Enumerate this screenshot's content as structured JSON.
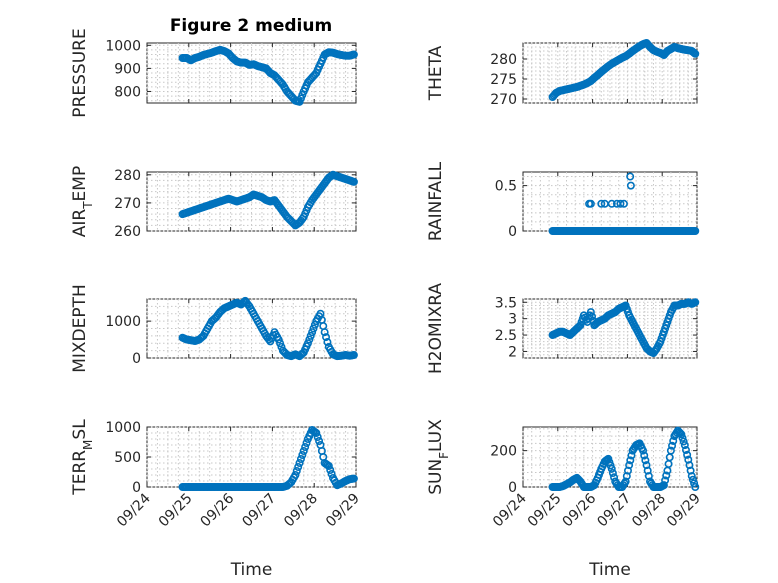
{
  "figure_title": "Figure 2 medium",
  "colors": {
    "marker": "#0072BD",
    "axis": "#262626",
    "grid": "#c8c8c8"
  },
  "chart_data": [
    {
      "type": "scatter",
      "title": "Figure 2 medium",
      "ylabel": "PRESSURE",
      "xlabel": "",
      "xlim": [
        0,
        5
      ],
      "ylim": [
        750,
        1010
      ],
      "yticks": [
        800,
        900,
        1000
      ],
      "yticklabels": [
        "800",
        "900",
        "1000"
      ],
      "xticklabels": [
        "09/24",
        "09/25",
        "09/26",
        "09/27",
        "09/28",
        "09/29"
      ],
      "show_xticklabels": false,
      "grid": true,
      "series": [
        {
          "x": [
            0.85,
            0.95,
            1.05,
            1.15,
            1.25,
            1.35,
            1.45,
            1.55,
            1.65,
            1.75,
            1.85,
            1.95,
            2.05,
            2.15,
            2.25,
            2.35,
            2.45,
            2.55,
            2.65,
            2.75,
            2.85,
            2.95,
            3.05,
            3.15,
            3.25,
            3.35,
            3.45,
            3.55,
            3.65,
            3.75,
            3.85,
            3.95,
            4.05,
            4.15,
            4.25,
            4.35,
            4.45,
            4.55,
            4.65,
            4.75,
            4.85,
            4.95
          ],
          "y": [
            945,
            945,
            935,
            945,
            950,
            958,
            963,
            968,
            975,
            980,
            975,
            965,
            945,
            930,
            925,
            925,
            915,
            918,
            910,
            905,
            900,
            880,
            870,
            850,
            830,
            800,
            780,
            760,
            755,
            800,
            840,
            860,
            880,
            920,
            960,
            970,
            968,
            962,
            958,
            955,
            955,
            960
          ]
        }
      ]
    },
    {
      "type": "scatter",
      "ylabel": "THETA",
      "xlabel": "",
      "xlim": [
        0,
        5
      ],
      "ylim": [
        269,
        284
      ],
      "yticks": [
        270,
        275,
        280
      ],
      "yticklabels": [
        "270",
        "275",
        "280"
      ],
      "xticklabels": [
        "09/24",
        "09/25",
        "09/26",
        "09/27",
        "09/28",
        "09/29"
      ],
      "show_xticklabels": false,
      "grid": true,
      "series": [
        {
          "x": [
            0.85,
            0.95,
            1.05,
            1.15,
            1.25,
            1.35,
            1.45,
            1.55,
            1.65,
            1.75,
            1.85,
            1.95,
            2.05,
            2.15,
            2.25,
            2.35,
            2.45,
            2.55,
            2.65,
            2.75,
            2.85,
            2.95,
            3.05,
            3.15,
            3.25,
            3.35,
            3.45,
            3.55,
            3.65,
            3.75,
            3.85,
            3.95,
            4.05,
            4.15,
            4.25,
            4.35,
            4.45,
            4.55,
            4.65,
            4.75,
            4.85,
            4.95
          ],
          "y": [
            270.5,
            271.5,
            272,
            272.2,
            272.4,
            272.6,
            272.8,
            273,
            273.3,
            273.6,
            274,
            274.5,
            275.3,
            276,
            276.8,
            277.5,
            278.2,
            278.8,
            279.3,
            279.8,
            280.3,
            280.7,
            281.3,
            282,
            282.6,
            283.2,
            283.7,
            284,
            283,
            282.2,
            281.8,
            281.5,
            281,
            282,
            282.5,
            283,
            282.7,
            282.5,
            282.3,
            282.2,
            282.0,
            281.3
          ]
        }
      ]
    },
    {
      "type": "scatter",
      "ylabel": "AIR_TEMP",
      "xlabel": "",
      "xlim": [
        0,
        5
      ],
      "ylim": [
        260,
        281
      ],
      "yticks": [
        260,
        270,
        280
      ],
      "yticklabels": [
        "260",
        "270",
        "280"
      ],
      "xticklabels": [
        "09/24",
        "09/25",
        "09/26",
        "09/27",
        "09/28",
        "09/29"
      ],
      "show_xticklabels": false,
      "grid": true,
      "series": [
        {
          "x": [
            0.85,
            0.95,
            1.05,
            1.15,
            1.25,
            1.35,
            1.45,
            1.55,
            1.65,
            1.75,
            1.85,
            1.95,
            2.05,
            2.15,
            2.25,
            2.35,
            2.45,
            2.55,
            2.65,
            2.75,
            2.85,
            2.95,
            3.05,
            3.15,
            3.25,
            3.35,
            3.45,
            3.55,
            3.65,
            3.75,
            3.85,
            3.95,
            4.05,
            4.15,
            4.25,
            4.35,
            4.45,
            4.55,
            4.65,
            4.75,
            4.85,
            4.95
          ],
          "y": [
            266,
            266.5,
            267,
            267.5,
            268,
            268.5,
            269,
            269.5,
            270,
            270.5,
            271,
            271.5,
            271,
            270.5,
            271,
            271.5,
            272,
            273,
            272.5,
            272,
            271,
            270.5,
            271,
            269,
            267,
            265,
            263.5,
            262,
            263,
            265,
            268.5,
            271,
            273,
            275,
            277,
            279,
            280,
            279.5,
            279,
            278.5,
            278,
            277.5
          ]
        }
      ]
    },
    {
      "type": "scatter",
      "ylabel": "RAINFALL",
      "xlabel": "",
      "xlim": [
        0,
        5
      ],
      "ylim": [
        0,
        0.65
      ],
      "yticks": [
        0,
        0.5
      ],
      "yticklabels": [
        "0",
        "0.5"
      ],
      "xticklabels": [
        "09/24",
        "09/25",
        "09/26",
        "09/27",
        "09/28",
        "09/29"
      ],
      "show_xticklabels": false,
      "grid": true,
      "series": [
        {
          "x": [
            0.85,
            0.95,
            1.05,
            1.15,
            1.25,
            1.35,
            1.45,
            1.55,
            1.65,
            1.75,
            1.85,
            1.95,
            2.05,
            2.15,
            2.25,
            2.35,
            2.45,
            2.55,
            2.65,
            2.75,
            2.85,
            2.95,
            3.05,
            3.15,
            3.25,
            3.35,
            3.45,
            3.55,
            3.65,
            3.75,
            3.85,
            3.95,
            4.05,
            4.15,
            4.25,
            4.35,
            4.45,
            4.55,
            4.65,
            4.75,
            4.85,
            4.95,
            1.9,
            1.95,
            2.25,
            2.35,
            2.55,
            2.7,
            2.8,
            2.9,
            3.08,
            3.1
          ],
          "y": [
            0,
            0,
            0,
            0,
            0,
            0,
            0,
            0,
            0,
            0,
            0,
            0,
            0,
            0,
            0,
            0,
            0,
            0,
            0,
            0,
            0,
            0,
            0,
            0,
            0,
            0,
            0,
            0,
            0,
            0,
            0,
            0,
            0,
            0,
            0,
            0,
            0,
            0,
            0,
            0,
            0,
            0,
            0.3,
            0.3,
            0.3,
            0.3,
            0.3,
            0.3,
            0.3,
            0.3,
            0.6,
            0.5
          ]
        }
      ]
    },
    {
      "type": "scatter",
      "ylabel": "MIXDEPTH",
      "xlabel": "",
      "xlim": [
        0,
        5
      ],
      "ylim": [
        0,
        1600
      ],
      "yticks": [
        0,
        1000
      ],
      "yticklabels": [
        "0",
        "1000"
      ],
      "xticklabels": [
        "09/24",
        "09/25",
        "09/26",
        "09/27",
        "09/28",
        "09/29"
      ],
      "show_xticklabels": false,
      "grid": true,
      "series": [
        {
          "x": [
            0.85,
            0.95,
            1.05,
            1.15,
            1.25,
            1.35,
            1.45,
            1.55,
            1.65,
            1.75,
            1.85,
            1.95,
            2.05,
            2.15,
            2.25,
            2.35,
            2.45,
            2.55,
            2.65,
            2.75,
            2.85,
            2.95,
            3.05,
            3.15,
            3.25,
            3.35,
            3.45,
            3.55,
            3.65,
            3.75,
            3.85,
            3.95,
            4.05,
            4.15,
            4.25,
            4.35,
            4.45,
            4.55,
            4.65,
            4.75,
            4.85,
            4.95
          ],
          "y": [
            550,
            500,
            480,
            460,
            500,
            600,
            800,
            1000,
            1100,
            1250,
            1350,
            1400,
            1450,
            1500,
            1450,
            1550,
            1400,
            1200,
            1000,
            800,
            600,
            450,
            700,
            500,
            200,
            80,
            50,
            100,
            50,
            150,
            400,
            700,
            1000,
            1200,
            700,
            300,
            100,
            50,
            60,
            80,
            60,
            80
          ]
        }
      ]
    },
    {
      "type": "scatter",
      "ylabel": "H2OMIXRA",
      "xlabel": "",
      "xlim": [
        0,
        5
      ],
      "ylim": [
        1.8,
        3.6
      ],
      "yticks": [
        2,
        2.5,
        3,
        3.5
      ],
      "yticklabels": [
        "2",
        "2.5",
        "3",
        "3.5"
      ],
      "xticklabels": [
        "09/24",
        "09/25",
        "09/26",
        "09/27",
        "09/28",
        "09/29"
      ],
      "show_xticklabels": false,
      "grid": true,
      "series": [
        {
          "x": [
            0.85,
            0.95,
            1.05,
            1.15,
            1.25,
            1.35,
            1.45,
            1.55,
            1.65,
            1.75,
            1.85,
            1.95,
            2.05,
            2.15,
            2.25,
            2.35,
            2.45,
            2.55,
            2.65,
            2.75,
            2.85,
            2.95,
            3.05,
            3.15,
            3.25,
            3.35,
            3.45,
            3.55,
            3.65,
            3.75,
            3.85,
            3.95,
            4.05,
            4.15,
            4.25,
            4.35,
            4.45,
            4.55,
            4.65,
            4.75,
            4.85,
            4.95
          ],
          "y": [
            2.5,
            2.55,
            2.6,
            2.6,
            2.55,
            2.5,
            2.6,
            2.7,
            2.8,
            3.1,
            2.9,
            3.2,
            2.8,
            2.9,
            2.95,
            3.0,
            3.1,
            3.15,
            3.2,
            3.3,
            3.35,
            3.4,
            3.1,
            2.9,
            2.7,
            2.5,
            2.3,
            2.1,
            2.0,
            1.95,
            2.1,
            2.3,
            2.6,
            2.9,
            3.2,
            3.4,
            3.4,
            3.45,
            3.45,
            3.5,
            3.45,
            3.5
          ]
        }
      ]
    },
    {
      "type": "scatter",
      "ylabel": "TERR_MSL",
      "xlabel": "Time",
      "xlim": [
        0,
        5
      ],
      "ylim": [
        0,
        1000
      ],
      "yticks": [
        0,
        500,
        1000
      ],
      "yticklabels": [
        "0",
        "500",
        "1000"
      ],
      "xticklabels": [
        "09/24",
        "09/25",
        "09/26",
        "09/27",
        "09/28",
        "09/29"
      ],
      "show_xticklabels": true,
      "grid": true,
      "series": [
        {
          "x": [
            0.85,
            0.95,
            1.05,
            1.15,
            1.25,
            1.35,
            1.45,
            1.55,
            1.65,
            1.75,
            1.85,
            1.95,
            2.05,
            2.15,
            2.25,
            2.35,
            2.45,
            2.55,
            2.65,
            2.75,
            2.85,
            2.95,
            3.05,
            3.15,
            3.25,
            3.35,
            3.45,
            3.55,
            3.65,
            3.75,
            3.85,
            3.95,
            4.05,
            4.15,
            4.25,
            4.35,
            4.45,
            4.55,
            4.65,
            4.75,
            4.85,
            4.95
          ],
          "y": [
            0,
            0,
            0,
            0,
            0,
            0,
            0,
            0,
            0,
            0,
            0,
            0,
            0,
            0,
            0,
            0,
            0,
            0,
            0,
            0,
            0,
            0,
            0,
            0,
            0,
            20,
            80,
            200,
            400,
            600,
            800,
            950,
            900,
            700,
            400,
            350,
            150,
            30,
            60,
            100,
            130,
            140
          ]
        }
      ]
    },
    {
      "type": "scatter",
      "ylabel": "SUN_FLUX",
      "xlabel": "Time",
      "xlim": [
        0,
        5
      ],
      "ylim": [
        0,
        330
      ],
      "yticks": [
        0,
        200
      ],
      "yticklabels": [
        "0",
        "200"
      ],
      "xticklabels": [
        "09/24",
        "09/25",
        "09/26",
        "09/27",
        "09/28",
        "09/29"
      ],
      "show_xticklabels": true,
      "grid": true,
      "series": [
        {
          "x": [
            0.85,
            0.95,
            1.05,
            1.15,
            1.25,
            1.35,
            1.45,
            1.55,
            1.65,
            1.75,
            1.85,
            1.95,
            2.05,
            2.15,
            2.25,
            2.35,
            2.45,
            2.55,
            2.65,
            2.75,
            2.85,
            2.95,
            3.05,
            3.15,
            3.25,
            3.35,
            3.45,
            3.55,
            3.65,
            3.75,
            3.85,
            3.95,
            4.05,
            4.15,
            4.25,
            4.35,
            4.45,
            4.55,
            4.65,
            4.75,
            4.85,
            4.95
          ],
          "y": [
            0,
            0,
            0,
            5,
            15,
            25,
            40,
            50,
            30,
            0,
            0,
            0,
            10,
            50,
            100,
            140,
            155,
            100,
            30,
            0,
            0,
            30,
            120,
            200,
            230,
            240,
            200,
            120,
            30,
            0,
            0,
            0,
            10,
            90,
            200,
            280,
            310,
            290,
            230,
            150,
            60,
            0
          ]
        }
      ]
    }
  ]
}
